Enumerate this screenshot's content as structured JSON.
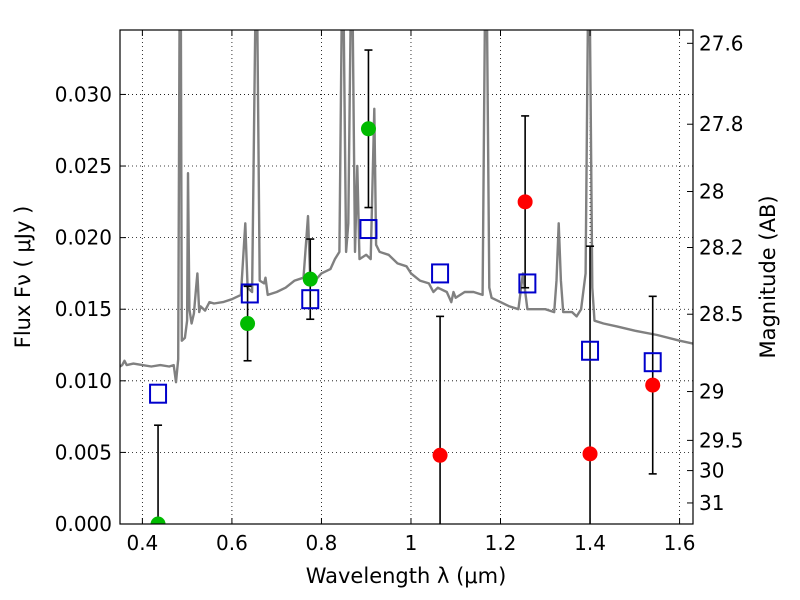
{
  "chart_data": {
    "type": "scatter",
    "xlabel": "Wavelength  λ (μm)",
    "ylabel": "Flux  Fν  ( μJy )",
    "ylabel_right": "Magnitude (AB)",
    "xlim": [
      0.35,
      1.63
    ],
    "ylim": [
      0.0,
      0.0345
    ],
    "grid": true,
    "x_ticks": [
      0.4,
      0.6,
      0.8,
      1.0,
      1.2,
      1.4,
      1.6
    ],
    "x_tick_labels": [
      "0.4",
      "0.6",
      "0.8",
      "1",
      "1.2",
      "1.4",
      "1.6"
    ],
    "y_ticks": [
      0.0,
      0.005,
      0.01,
      0.015,
      0.02,
      0.025,
      0.03
    ],
    "y_tick_labels": [
      "0.000",
      "0.005",
      "0.010",
      "0.015",
      "0.020",
      "0.025",
      "0.030"
    ],
    "right_ticks": [
      {
        "label": "27.6",
        "flux": 0.03357
      },
      {
        "label": "27.8",
        "flux": 0.02792
      },
      {
        "label": "28",
        "flux": 0.02322
      },
      {
        "label": "28.2",
        "flux": 0.01931
      },
      {
        "label": "28.5",
        "flux": 0.01465
      },
      {
        "label": "29",
        "flux": 0.00925
      },
      {
        "label": "29.5",
        "flux": 0.00584
      },
      {
        "label": "30",
        "flux": 0.00373
      },
      {
        "label": "31",
        "flux": 0.00147
      }
    ],
    "colors": {
      "model": "#808080",
      "detection": "#00bb00",
      "upper_limit": "#ff0000",
      "model_band": "#0000cc",
      "errorbar": "#000000"
    },
    "series": [
      {
        "role": "model_spectrum",
        "points": [
          [
            0.35,
            0.011
          ],
          [
            0.355,
            0.0111
          ],
          [
            0.36,
            0.0114
          ],
          [
            0.365,
            0.0111
          ],
          [
            0.38,
            0.0112
          ],
          [
            0.4,
            0.0111
          ],
          [
            0.42,
            0.011
          ],
          [
            0.44,
            0.0111
          ],
          [
            0.46,
            0.011
          ],
          [
            0.47,
            0.0111
          ],
          [
            0.475,
            0.0099
          ],
          [
            0.48,
            0.0115
          ],
          [
            0.483,
            0.0345
          ],
          [
            0.486,
            0.0345
          ],
          [
            0.488,
            0.0128
          ],
          [
            0.495,
            0.013
          ],
          [
            0.5,
            0.0142
          ],
          [
            0.502,
            0.0245
          ],
          [
            0.505,
            0.015
          ],
          [
            0.51,
            0.014
          ],
          [
            0.515,
            0.0147
          ],
          [
            0.52,
            0.0165
          ],
          [
            0.523,
            0.0175
          ],
          [
            0.527,
            0.0148
          ],
          [
            0.53,
            0.0152
          ],
          [
            0.54,
            0.0149
          ],
          [
            0.55,
            0.0155
          ],
          [
            0.56,
            0.0154
          ],
          [
            0.58,
            0.0155
          ],
          [
            0.6,
            0.0157
          ],
          [
            0.62,
            0.016
          ],
          [
            0.63,
            0.021
          ],
          [
            0.635,
            0.0165
          ],
          [
            0.645,
            0.0162
          ],
          [
            0.652,
            0.0345
          ],
          [
            0.657,
            0.0345
          ],
          [
            0.662,
            0.017
          ],
          [
            0.672,
            0.0168
          ],
          [
            0.675,
            0.0172
          ],
          [
            0.68,
            0.016
          ],
          [
            0.7,
            0.0162
          ],
          [
            0.72,
            0.0165
          ],
          [
            0.74,
            0.017
          ],
          [
            0.76,
            0.0172
          ],
          [
            0.77,
            0.0215
          ],
          [
            0.775,
            0.017
          ],
          [
            0.78,
            0.0168
          ],
          [
            0.8,
            0.0175
          ],
          [
            0.82,
            0.0178
          ],
          [
            0.83,
            0.0185
          ],
          [
            0.84,
            0.019
          ],
          [
            0.845,
            0.0345
          ],
          [
            0.85,
            0.0345
          ],
          [
            0.855,
            0.019
          ],
          [
            0.86,
            0.021
          ],
          [
            0.865,
            0.0345
          ],
          [
            0.87,
            0.0345
          ],
          [
            0.875,
            0.019
          ],
          [
            0.88,
            0.025
          ],
          [
            0.885,
            0.0185
          ],
          [
            0.9,
            0.0188
          ],
          [
            0.91,
            0.0185
          ],
          [
            0.918,
            0.029
          ],
          [
            0.922,
            0.0195
          ],
          [
            0.93,
            0.019
          ],
          [
            0.95,
            0.0188
          ],
          [
            0.97,
            0.0182
          ],
          [
            0.99,
            0.018
          ],
          [
            1.0,
            0.0175
          ],
          [
            1.02,
            0.017
          ],
          [
            1.04,
            0.0168
          ],
          [
            1.05,
            0.0162
          ],
          [
            1.06,
            0.0165
          ],
          [
            1.08,
            0.0162
          ],
          [
            1.09,
            0.0155
          ],
          [
            1.095,
            0.0162
          ],
          [
            1.1,
            0.0158
          ],
          [
            1.12,
            0.0162
          ],
          [
            1.14,
            0.0162
          ],
          [
            1.16,
            0.016
          ],
          [
            1.165,
            0.0345
          ],
          [
            1.17,
            0.0345
          ],
          [
            1.175,
            0.0165
          ],
          [
            1.18,
            0.0158
          ],
          [
            1.2,
            0.0155
          ],
          [
            1.22,
            0.0152
          ],
          [
            1.24,
            0.015
          ],
          [
            1.25,
            0.0175
          ],
          [
            1.26,
            0.015
          ],
          [
            1.28,
            0.015
          ],
          [
            1.3,
            0.015
          ],
          [
            1.32,
            0.0148
          ],
          [
            1.325,
            0.017
          ],
          [
            1.33,
            0.021
          ],
          [
            1.335,
            0.017
          ],
          [
            1.34,
            0.0148
          ],
          [
            1.36,
            0.0148
          ],
          [
            1.37,
            0.0145
          ],
          [
            1.38,
            0.015
          ],
          [
            1.39,
            0.0175
          ],
          [
            1.395,
            0.0345
          ],
          [
            1.4,
            0.0345
          ],
          [
            1.405,
            0.0165
          ],
          [
            1.41,
            0.0142
          ],
          [
            1.43,
            0.014
          ],
          [
            1.46,
            0.0138
          ],
          [
            1.5,
            0.0135
          ],
          [
            1.55,
            0.0132
          ],
          [
            1.6,
            0.0128
          ],
          [
            1.63,
            0.0126
          ]
        ]
      },
      {
        "role": "photometry_detection",
        "points": [
          {
            "x": 0.435,
            "y": 0.0
          },
          {
            "x": 0.635,
            "y": 0.014,
            "err": 0.0026
          },
          {
            "x": 0.775,
            "y": 0.0171,
            "err": 0.0028
          },
          {
            "x": 0.905,
            "y": 0.0276,
            "err": 0.0055
          }
        ]
      },
      {
        "role": "photometry_upper_limit",
        "points": [
          {
            "x": 1.065,
            "y": 0.0048,
            "err": 0.0097
          },
          {
            "x": 1.255,
            "y": 0.0225,
            "err": 0.006
          },
          {
            "x": 1.4,
            "y": 0.0049,
            "err": 0.0145
          },
          {
            "x": 1.54,
            "y": 0.0097,
            "err": 0.0062
          }
        ]
      },
      {
        "role": "model_band_flux",
        "points": [
          {
            "x": 0.435,
            "y": 0.0091
          },
          {
            "x": 0.64,
            "y": 0.0161
          },
          {
            "x": 0.775,
            "y": 0.0157
          },
          {
            "x": 0.905,
            "y": 0.0206
          },
          {
            "x": 1.065,
            "y": 0.0175
          },
          {
            "x": 1.26,
            "y": 0.0168
          },
          {
            "x": 1.4,
            "y": 0.0121
          },
          {
            "x": 1.54,
            "y": 0.0113
          }
        ]
      },
      {
        "role": "errorbar_only",
        "points": [
          {
            "x": 0.435,
            "y": 0.0,
            "err": 0.0069
          }
        ]
      }
    ]
  }
}
